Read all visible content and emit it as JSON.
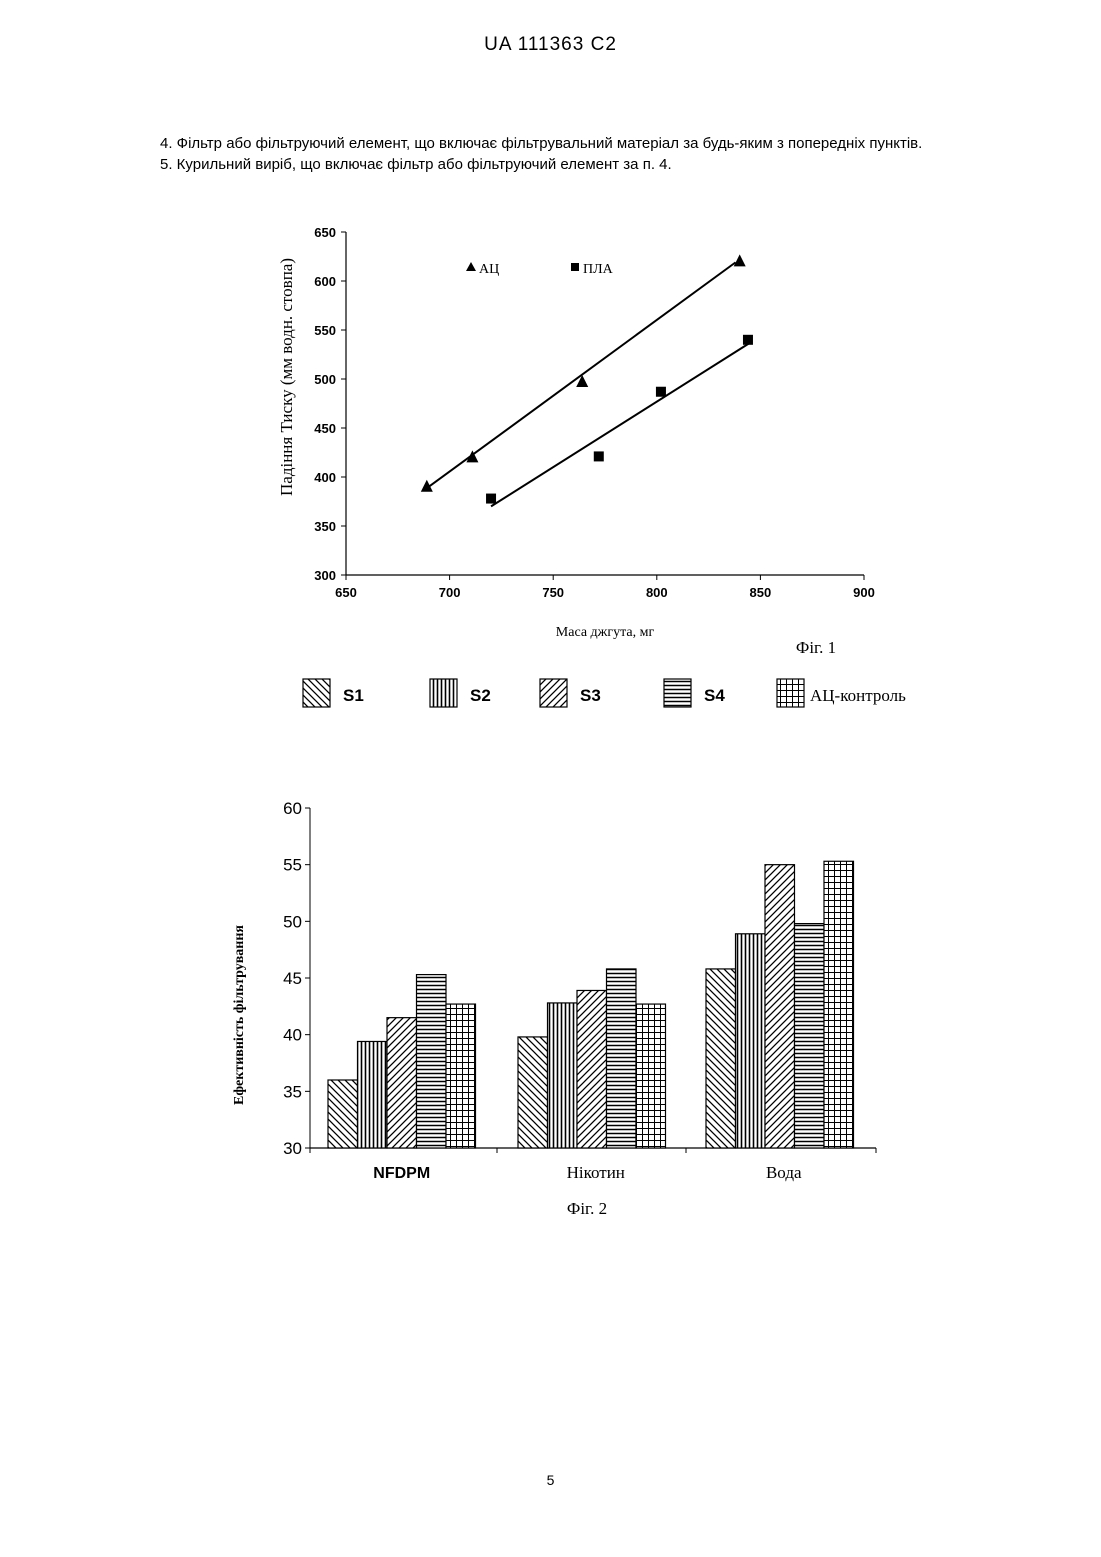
{
  "header": {
    "doc_id": "UA   111363   C2"
  },
  "claims": [
    "4. Фільтр або фільтруючий елемент, що включає фільтрувальний матеріал за будь-яким з попередніх пунктів.",
    "5. Курильний виріб, що включає фільтр або фільтруючий елемент за п. 4."
  ],
  "page_number": "5",
  "chart_data": [
    {
      "type": "scatter",
      "caption": "Фіг. 1",
      "xlabel": "Маса джгута, мг",
      "ylabel": "Падіння Тиску (мм водн. стовпа)",
      "xlim": [
        650,
        900
      ],
      "ylim": [
        300,
        650
      ],
      "x_ticks": [
        "650",
        "700",
        "750",
        "800",
        "850",
        "900"
      ],
      "y_ticks": [
        "300",
        "350",
        "400",
        "450",
        "500",
        "550",
        "600",
        "650"
      ],
      "legend_position": "top",
      "series": [
        {
          "name": "АЦ",
          "marker": "triangle",
          "points": [
            [
              689,
              390
            ],
            [
              711,
              420
            ],
            [
              764,
              497
            ],
            [
              840,
              620
            ]
          ],
          "trendline": [
            [
              688,
              387
            ],
            [
              838,
              619
            ]
          ]
        },
        {
          "name": "ПЛА",
          "marker": "square",
          "points": [
            [
              720,
              378
            ],
            [
              772,
              421
            ],
            [
              802,
              487
            ],
            [
              844,
              540
            ]
          ],
          "trendline": [
            [
              720,
              370
            ],
            [
              845,
              537
            ]
          ]
        }
      ]
    },
    {
      "type": "bar",
      "caption": "Фіг. 2",
      "xlabel": "",
      "ylabel": "Ефективність фільтрування",
      "ylim": [
        30,
        60
      ],
      "y_ticks": [
        "30",
        "35",
        "40",
        "45",
        "50",
        "55",
        "60"
      ],
      "categories": [
        "NFDPM",
        "Нікотин",
        "Вода"
      ],
      "legend_position": "top",
      "series": [
        {
          "name": "S1",
          "pattern": "diag-back",
          "values": [
            36,
            39.8,
            45.8
          ]
        },
        {
          "name": "S2",
          "pattern": "vertical",
          "values": [
            39.4,
            42.8,
            48.9
          ]
        },
        {
          "name": "S3",
          "pattern": "diag-forward",
          "values": [
            41.5,
            43.9,
            55
          ]
        },
        {
          "name": "S4",
          "pattern": "horizontal",
          "values": [
            45.3,
            45.8,
            49.8
          ]
        },
        {
          "name": "АЦ-контроль",
          "pattern": "grid",
          "values": [
            42.7,
            42.7,
            55.3
          ]
        }
      ]
    }
  ],
  "colors": {
    "ink": "#000000",
    "paper": "#ffffff"
  }
}
